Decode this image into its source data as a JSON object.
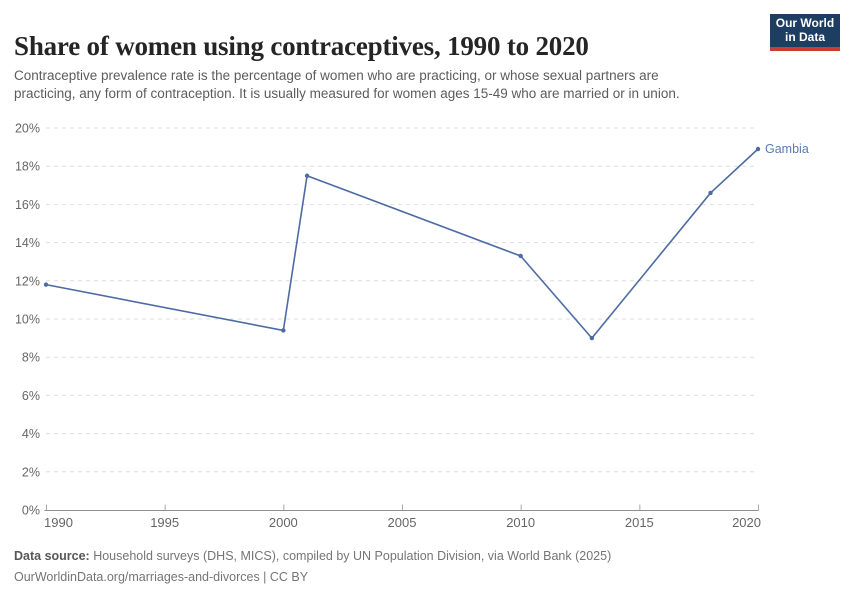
{
  "header": {
    "title": "Share of women using contraceptives, 1990 to 2020",
    "subtitle": "Contraceptive prevalence rate is the percentage of women who are practicing, or whose sexual partners are practicing, any form of contraception. It is usually measured for women ages 15-49 who are married or in union.",
    "logo": {
      "line1": "Our World",
      "line2": "in Data",
      "bg_color": "#1d3d63",
      "bar_color": "#cf3a33"
    }
  },
  "chart_data": {
    "type": "line",
    "title": "Share of women using contraceptives, 1990 to 2020",
    "xlabel": "",
    "ylabel": "",
    "xlim": [
      1990,
      2020
    ],
    "ylim": [
      0,
      20
    ],
    "x_ticks": [
      1990,
      1995,
      2000,
      2005,
      2010,
      2015,
      2020
    ],
    "y_ticks": [
      0,
      2,
      4,
      6,
      8,
      10,
      12,
      14,
      16,
      18,
      20
    ],
    "y_tick_suffix": "%",
    "grid": "horizontal-dashed",
    "grid_color": "#dedede",
    "axis_color": "#8f8f8f",
    "legend": "end-of-line-label",
    "series": [
      {
        "name": "Gambia",
        "color": "#4d6ba3",
        "label_color": "#577cb5",
        "x": [
          1990,
          2000,
          2001,
          2010,
          2013,
          2018,
          2020
        ],
        "values": [
          11.8,
          9.4,
          17.5,
          13.3,
          9.0,
          16.6,
          18.9
        ]
      }
    ]
  },
  "footer": {
    "source_label": "Data source:",
    "source_text": " Household surveys (DHS, MICS), compiled by UN Population Division, via World Bank (2025)",
    "link_line": "OurWorldinData.org/marriages-and-divorces | CC BY"
  }
}
